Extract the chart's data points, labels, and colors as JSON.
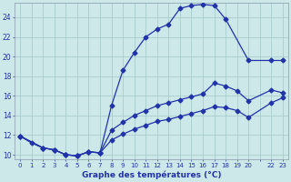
{
  "xlabel": "Graphe des températures (°C)",
  "bg_color": "#cce8e8",
  "grid_color": "#aacccc",
  "line_color": "#2233aa",
  "xlim": [
    -0.5,
    23.5
  ],
  "ylim": [
    9.5,
    25.5
  ],
  "yticks": [
    10,
    12,
    14,
    16,
    18,
    20,
    22,
    24
  ],
  "xtick_labels": [
    "0",
    "1",
    "2",
    "3",
    "4",
    "5",
    "6",
    "7",
    "8",
    "9",
    "10",
    "11",
    "12",
    "13",
    "14",
    "15",
    "16",
    "17",
    "18",
    "19",
    "20",
    "",
    "22",
    "23"
  ],
  "curve1_x": [
    0,
    1,
    2,
    3,
    4,
    5,
    6,
    7,
    8,
    9,
    10,
    11,
    12,
    13,
    14,
    15,
    16,
    17,
    18,
    20,
    22,
    23
  ],
  "curve1_y": [
    11.9,
    11.2,
    10.7,
    10.5,
    10.0,
    9.9,
    10.3,
    10.2,
    15.0,
    18.6,
    20.4,
    22.0,
    22.8,
    23.3,
    24.9,
    25.2,
    25.3,
    25.2,
    23.8,
    19.6,
    19.6,
    19.6
  ],
  "curve2_x": [
    0,
    2,
    3,
    4,
    5,
    6,
    7,
    8,
    9,
    10,
    11,
    12,
    13,
    14,
    15,
    16,
    17,
    18,
    19,
    20,
    22,
    23
  ],
  "curve2_y": [
    11.9,
    10.7,
    10.5,
    10.0,
    9.9,
    10.3,
    10.2,
    12.5,
    13.3,
    14.0,
    14.5,
    15.0,
    15.3,
    15.6,
    15.9,
    16.2,
    17.3,
    17.0,
    16.5,
    15.5,
    16.6,
    16.3
  ],
  "curve3_x": [
    0,
    2,
    3,
    4,
    5,
    6,
    7,
    8,
    9,
    10,
    11,
    12,
    13,
    14,
    15,
    16,
    17,
    18,
    19,
    20,
    22,
    23
  ],
  "curve3_y": [
    11.9,
    10.7,
    10.5,
    10.0,
    9.9,
    10.3,
    10.2,
    11.5,
    12.1,
    12.6,
    13.0,
    13.4,
    13.6,
    13.9,
    14.2,
    14.5,
    14.9,
    14.8,
    14.5,
    13.8,
    15.3,
    15.8
  ]
}
